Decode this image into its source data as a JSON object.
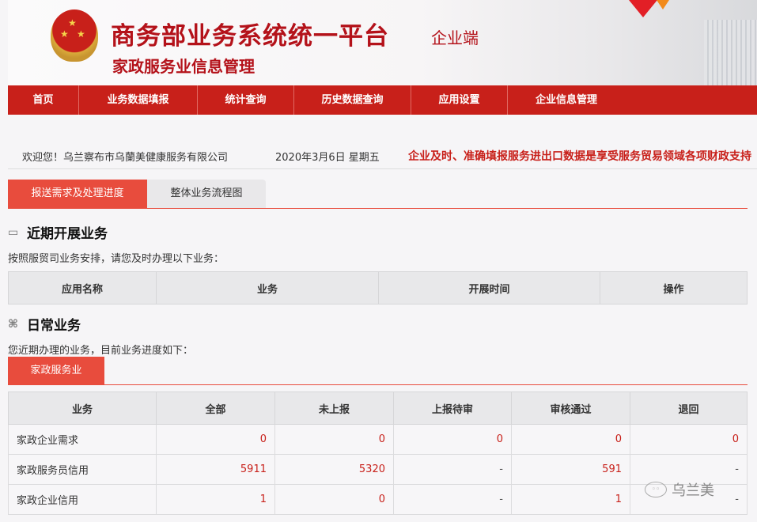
{
  "header": {
    "title": "商务部业务系统统一平台",
    "tag": "企业端",
    "subtitle": "家政服务业信息管理"
  },
  "nav": [
    "首页",
    "业务数据填报",
    "统计查询",
    "历史数据查询",
    "应用设置",
    "企业信息管理"
  ],
  "welcome": "欢迎您！乌兰察布市乌蘭美健康服务有限公司",
  "date": "2020年3月6日 星期五",
  "notice": "企业及时、准确填报服务进出口数据是享受服务贸易领域各项财政支持",
  "tabs": [
    "报送需求及处理进度",
    "整体业务流程图"
  ],
  "recent": {
    "title": "近期开展业务",
    "desc": "按照服贸司业务安排，请您及时办理以下业务：",
    "columns": [
      "应用名称",
      "业务",
      "开展时间",
      "操作"
    ]
  },
  "daily": {
    "title": "日常业务",
    "desc": "您近期办理的业务，目前业务进度如下：",
    "tab": "家政服务业",
    "columns": [
      "业务",
      "全部",
      "未上报",
      "上报待审",
      "审核通过",
      "退回"
    ],
    "rows": [
      [
        "家政企业需求",
        "0",
        "0",
        "0",
        "0",
        "0"
      ],
      [
        "家政服务员信用",
        "5911",
        "5320",
        "-",
        "591",
        "-"
      ],
      [
        "家政企业信用",
        "1",
        "0",
        "-",
        "1",
        "-"
      ]
    ]
  },
  "watermark": "乌兰美",
  "colors": {
    "nav": "#c8201a",
    "accent": "#e84c3d"
  }
}
